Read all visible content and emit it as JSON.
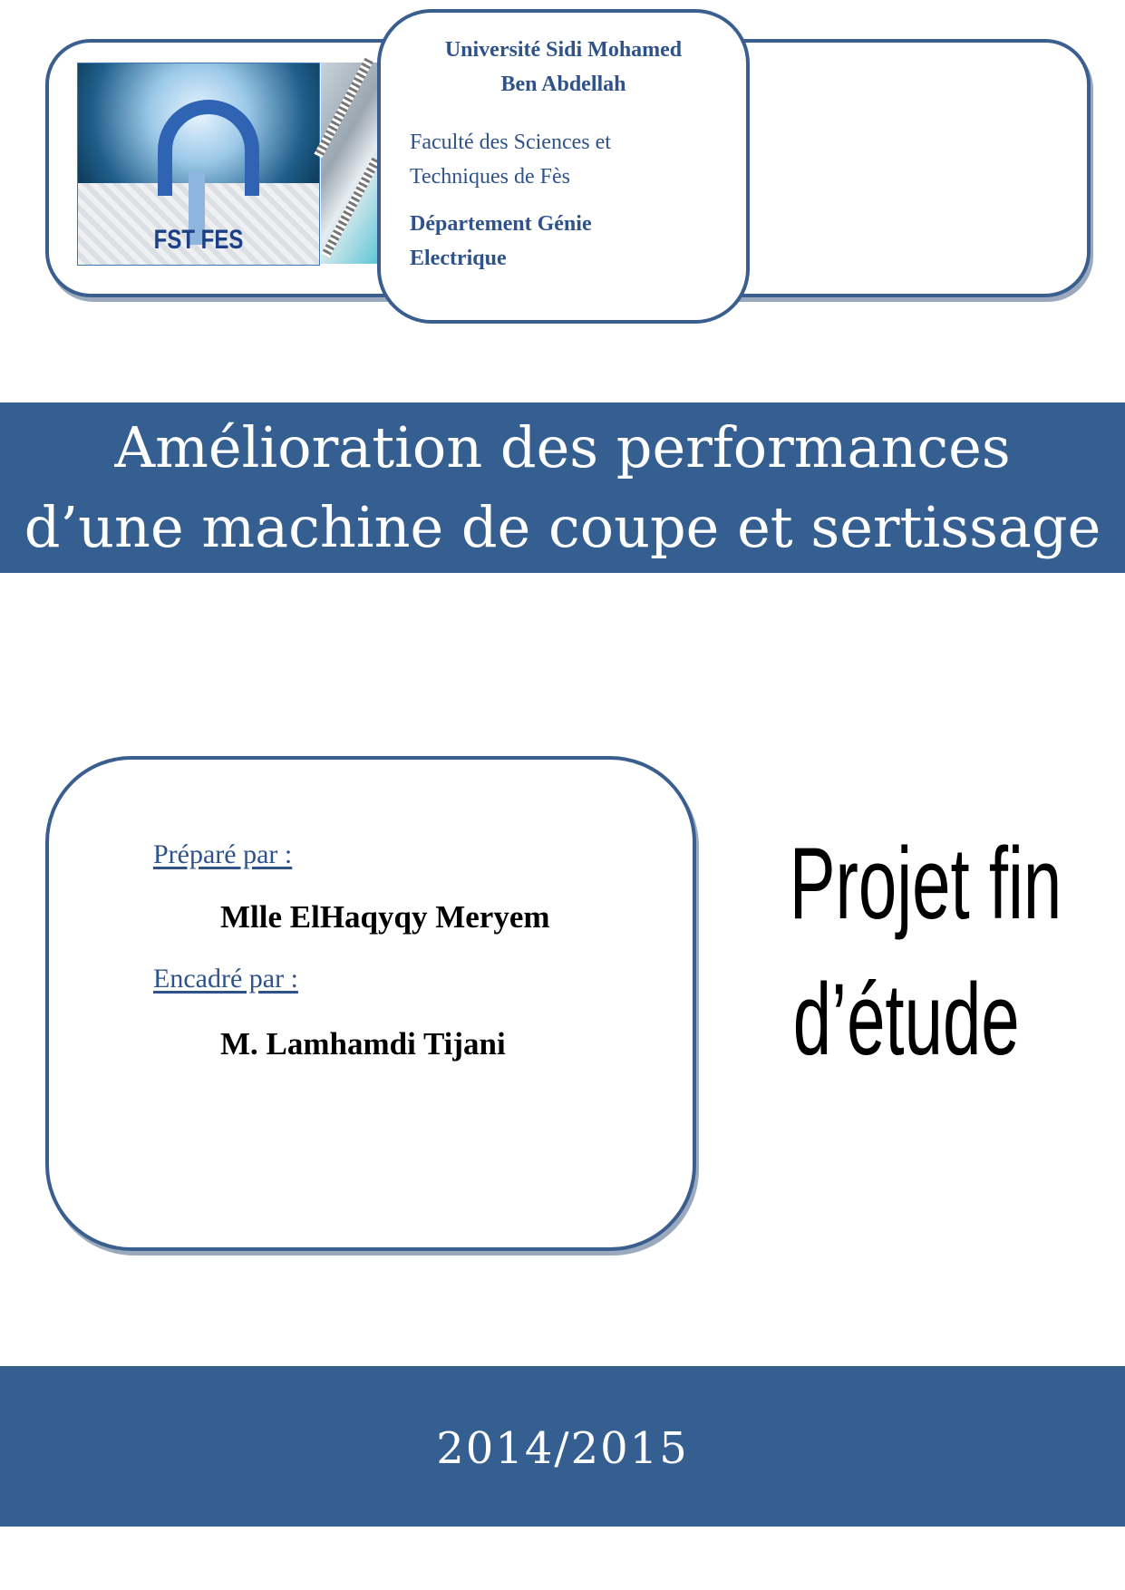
{
  "header": {
    "logo_text": "FST FES",
    "university": "Université Sidi Mohamed Ben Abdellah",
    "university_line1": "Université Sidi Mohamed",
    "university_line2": "Ben Abdellah",
    "faculty_line1": "Faculté des Sciences et",
    "faculty_line2": "Techniques de Fès",
    "department_line1": "Département Génie",
    "department_line2": "Electrique"
  },
  "title": {
    "line1": "Amélioration des performances",
    "line2": "d’une machine de coupe et sertissage"
  },
  "credits": {
    "prepared_label": "Préparé par    :",
    "prepared_name": "Mlle ElHaqyqy Meryem",
    "supervised_label": "Encadré par :",
    "supervised_name": "M. Lamhamdi Tijani"
  },
  "project_type": {
    "line1": "Projet fin",
    "line2": "d’étude"
  },
  "footer": {
    "year": "2014/2015"
  },
  "colors": {
    "accent": "#365f91",
    "text_blue": "#2e5289"
  }
}
